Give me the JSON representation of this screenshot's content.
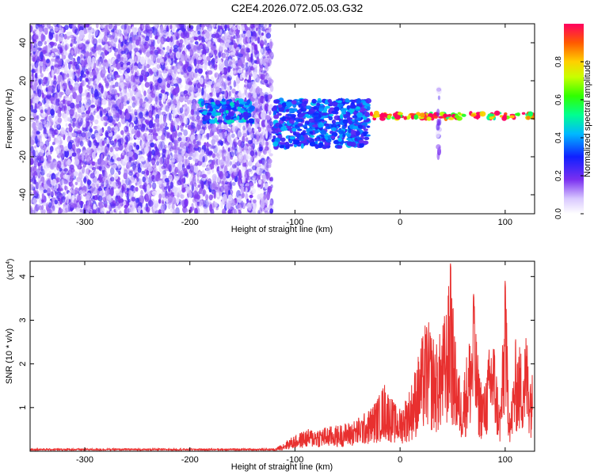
{
  "title": "C2E4.2026.072.05.03.G32",
  "chart_data": [
    {
      "type": "heatmap",
      "name": "spectrogram",
      "xlabel": "Height of straight line (km)",
      "ylabel": "Frequency (Hz)",
      "xlim": [
        -352,
        128
      ],
      "ylim": [
        -50,
        50
      ],
      "x_ticks": [
        -300,
        -200,
        -100,
        0,
        100
      ],
      "y_ticks": [
        -40,
        -20,
        0,
        20,
        40
      ],
      "colorbar": {
        "label": "Normalized spectral amplitude",
        "range": [
          0,
          1
        ],
        "ticks": [
          0.0,
          0.2,
          0.4,
          0.6,
          0.8
        ]
      },
      "regions": [
        {
          "x_range": [
            -352,
            -122
          ],
          "f_range": [
            -50,
            50
          ],
          "amplitude": 0.1,
          "description": "broadband noise"
        },
        {
          "x_range": [
            -190,
            -140
          ],
          "f_range": [
            -2,
            10
          ],
          "amplitude": 0.45
        },
        {
          "x_range": [
            -120,
            -30
          ],
          "f_range": [
            -15,
            10
          ],
          "amplitude": 0.4
        },
        {
          "x_range": [
            -30,
            128
          ],
          "f_range": [
            0,
            3
          ],
          "amplitude": 0.95,
          "description": "narrow tone near 1-2 Hz"
        },
        {
          "x_range": [
            36,
            38
          ],
          "f_range": [
            -20,
            18
          ],
          "amplitude": 0.1
        }
      ]
    },
    {
      "type": "line",
      "name": "snr",
      "xlabel": "Height of straight line (km)",
      "ylabel": "SNR (10 * v/v)",
      "y_scale_label": "(x10",
      "y_scale_exponent": "4",
      "y_scale_suffix": ")",
      "xlim": [
        -352,
        128
      ],
      "ylim": [
        0,
        4.35
      ],
      "x_ticks": [
        -300,
        -200,
        -100,
        0,
        100
      ],
      "y_ticks": [
        1,
        2,
        3,
        4
      ],
      "color": "#e8302f",
      "series": [
        {
          "name": "SNR",
          "x": [
            -352,
            -120,
            -105,
            -90,
            -75,
            -60,
            -45,
            -30,
            -20,
            -15,
            -5,
            0,
            10,
            18,
            25,
            35,
            40,
            45,
            48,
            52,
            58,
            65,
            70,
            75,
            80,
            88,
            95,
            100,
            105,
            110,
            115,
            120,
            126
          ],
          "y": [
            0.03,
            0.04,
            0.3,
            0.5,
            0.55,
            0.6,
            0.7,
            0.95,
            1.3,
            1.6,
            1.1,
            1.0,
            1.5,
            2.3,
            3.1,
            2.5,
            2.9,
            3.5,
            4.3,
            2.7,
            1.5,
            2.5,
            3.6,
            1.9,
            1.5,
            3.0,
            1.0,
            3.9,
            0.9,
            2.6,
            2.4,
            2.8,
            1.8
          ]
        }
      ]
    }
  ]
}
